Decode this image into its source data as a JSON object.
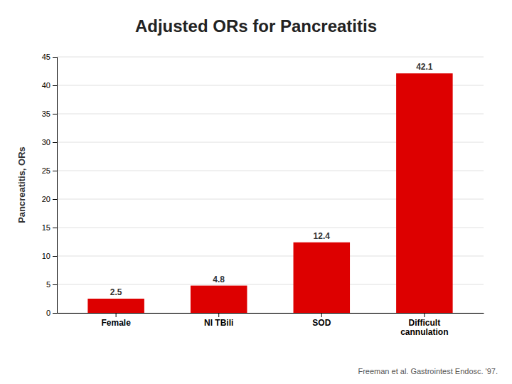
{
  "chart_data": {
    "type": "bar",
    "title": "Adjusted ORs for Pancreatitis",
    "categories": [
      "Female",
      "NI TBili",
      "SOD",
      "Difficult\ncannulation"
    ],
    "values": [
      2.5,
      4.8,
      12.4,
      42.1
    ],
    "color": "#dd0000",
    "ylabel": "Pancreatitis, ORs",
    "ylim": [
      0,
      45
    ],
    "yticks": [
      0,
      5,
      10,
      15,
      20,
      25,
      30,
      35,
      40,
      45
    ],
    "grid": true,
    "data_labels": true,
    "annotations": [
      "Freeman et al. Gastrointest Endosc. '97."
    ]
  }
}
